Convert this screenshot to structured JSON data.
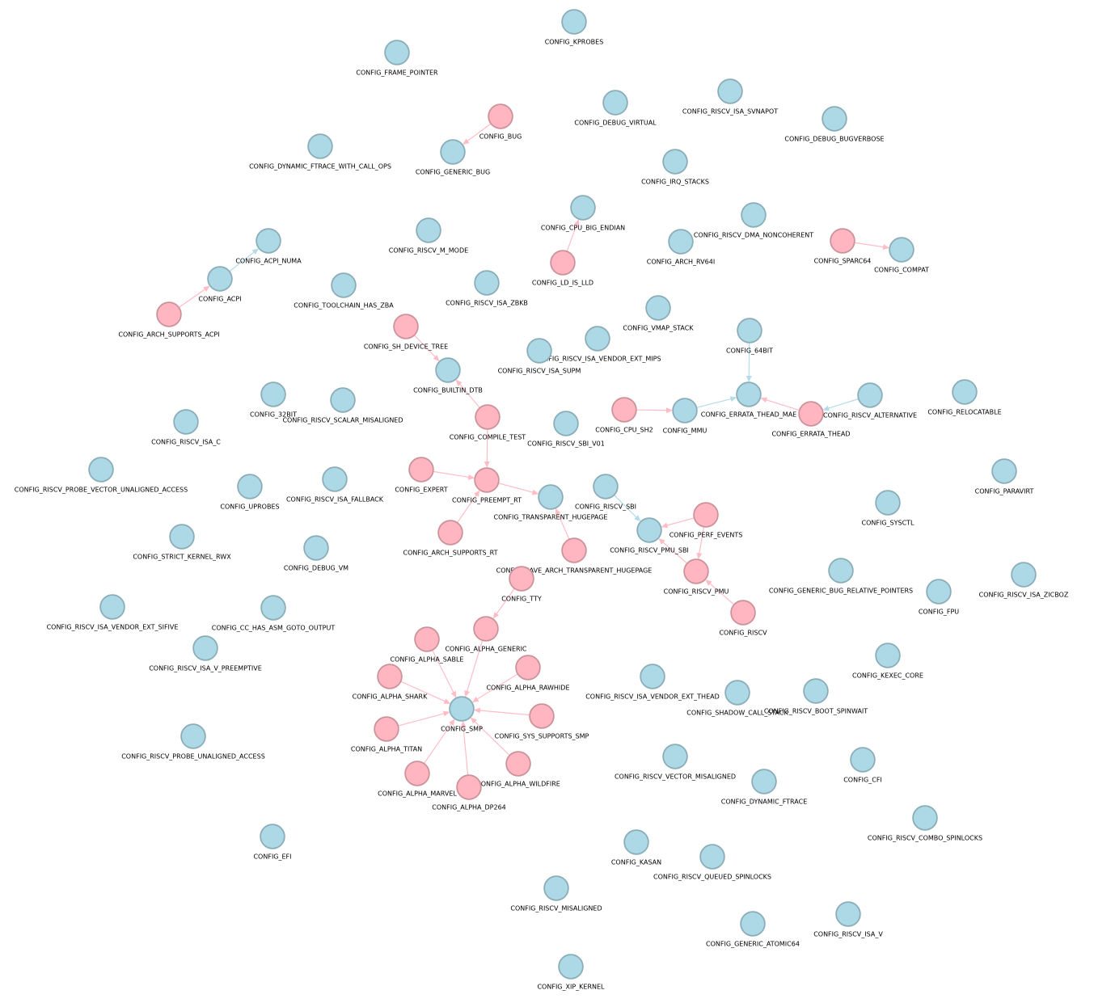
{
  "nodes": [
    {
      "label": "CONFIG_KPROBES",
      "color": "#add8e6"
    },
    {
      "label": "CONFIG_FRAME_POINTER",
      "color": "#add8e6"
    },
    {
      "label": "CONFIG_BUG",
      "color": "#ffb6c1"
    },
    {
      "label": "CONFIG_GENERIC_BUG",
      "color": "#add8e6"
    },
    {
      "label": "CONFIG_DEBUG_VIRTUAL",
      "color": "#add8e6"
    },
    {
      "label": "CONFIG_RISCV_ISA_SVNAPOT",
      "color": "#add8e6"
    },
    {
      "label": "CONFIG_DEBUG_BUGVERBOSE",
      "color": "#add8e6"
    },
    {
      "label": "CONFIG_DYNAMIC_FTRACE_WITH_CALL_OPS",
      "color": "#add8e6"
    },
    {
      "label": "CONFIG_IRQ_STACKS",
      "color": "#add8e6"
    },
    {
      "label": "CONFIG_CPU_BIG_ENDIAN",
      "color": "#add8e6"
    },
    {
      "label": "CONFIG_LD_IS_LLD",
      "color": "#ffb6c1"
    },
    {
      "label": "CONFIG_RISCV_DMA_NONCOHERENT",
      "color": "#add8e6"
    },
    {
      "label": "CONFIG_ARCH_RV64I",
      "color": "#add8e6"
    },
    {
      "label": "CONFIG_SPARC64",
      "color": "#ffb6c1"
    },
    {
      "label": "CONFIG_COMPAT",
      "color": "#add8e6"
    },
    {
      "label": "CONFIG_RISCV_M_MODE",
      "color": "#add8e6"
    },
    {
      "label": "CONFIG_ACPI_NUMA",
      "color": "#add8e6"
    },
    {
      "label": "CONFIG_ACPI",
      "color": "#add8e6"
    },
    {
      "label": "CONFIG_ARCH_SUPPORTS_ACPI",
      "color": "#ffb6c1"
    },
    {
      "label": "CONFIG_TOOLCHAIN_HAS_ZBA",
      "color": "#add8e6"
    },
    {
      "label": "CONFIG_RISCV_ISA_ZBKB",
      "color": "#add8e6"
    },
    {
      "label": "CONFIG_VMAP_STACK",
      "color": "#add8e6"
    },
    {
      "label": "CONFIG_64BIT",
      "color": "#add8e6"
    },
    {
      "label": "CONFIG_SH_DEVICE_TREE",
      "color": "#ffb6c1"
    },
    {
      "label": "CONFIG_RISCV_ISA_VENDOR_EXT_MIPS",
      "color": "#add8e6"
    },
    {
      "label": "CONFIG_RISCV_ISA_SUPM",
      "color": "#add8e6"
    },
    {
      "label": "CONFIG_BUILTIN_DTB",
      "color": "#add8e6"
    },
    {
      "label": "CONFIG_ERRATA_THEAD_MAE",
      "color": "#add8e6"
    },
    {
      "label": "CONFIG_RISCV_ALTERNATIVE",
      "color": "#add8e6"
    },
    {
      "label": "CONFIG_RELOCATABLE",
      "color": "#add8e6"
    },
    {
      "label": "CONFIG_CPU_SH2",
      "color": "#ffb6c1"
    },
    {
      "label": "CONFIG_MMU",
      "color": "#add8e6"
    },
    {
      "label": "CONFIG_ERRATA_THEAD",
      "color": "#ffb6c1"
    },
    {
      "label": "CONFIG_32BIT",
      "color": "#add8e6"
    },
    {
      "label": "CONFIG_RISCV_SCALAR_MISALIGNED",
      "color": "#add8e6"
    },
    {
      "label": "CONFIG_COMPILE_TEST",
      "color": "#ffb6c1"
    },
    {
      "label": "CONFIG_RISCV_SBI_V01",
      "color": "#add8e6"
    },
    {
      "label": "CONFIG_RISCV_ISA_C",
      "color": "#add8e6"
    },
    {
      "label": "CONFIG_RISCV_PROBE_VECTOR_UNALIGNED_ACCESS",
      "color": "#add8e6"
    },
    {
      "label": "CONFIG_EXPERT",
      "color": "#ffb6c1"
    },
    {
      "label": "CONFIG_PREEMPT_RT",
      "color": "#ffb6c1"
    },
    {
      "label": "CONFIG_RISCV_ISA_FALLBACK",
      "color": "#add8e6"
    },
    {
      "label": "CONFIG_UPROBES",
      "color": "#add8e6"
    },
    {
      "label": "CONFIG_TRANSPARENT_HUGEPAGE",
      "color": "#add8e6"
    },
    {
      "label": "CONFIG_RISCV_SBI",
      "color": "#add8e6"
    },
    {
      "label": "CONFIG_PARAVIRT",
      "color": "#add8e6"
    },
    {
      "label": "CONFIG_SYSCTL",
      "color": "#add8e6"
    },
    {
      "label": "CONFIG_PERF_EVENTS",
      "color": "#ffb6c1"
    },
    {
      "label": "CONFIG_RISCV_PMU_SBI",
      "color": "#add8e6"
    },
    {
      "label": "CONFIG_ARCH_SUPPORTS_RT",
      "color": "#ffb6c1"
    },
    {
      "label": "CONFIG_STRICT_KERNEL_RWX",
      "color": "#add8e6"
    },
    {
      "label": "CONFIG_DEBUG_VM",
      "color": "#add8e6"
    },
    {
      "label": "CONFIG_HAVE_ARCH_TRANSPARENT_HUGEPAGE",
      "color": "#ffb6c1"
    },
    {
      "label": "CONFIG_RISCV_PMU",
      "color": "#ffb6c1"
    },
    {
      "label": "CONFIG_GENERIC_BUG_RELATIVE_POINTERS",
      "color": "#add8e6"
    },
    {
      "label": "CONFIG_RISCV_ISA_ZICBOZ",
      "color": "#add8e6"
    },
    {
      "label": "CONFIG_FPU",
      "color": "#add8e6"
    },
    {
      "label": "CONFIG_TTY",
      "color": "#ffb6c1"
    },
    {
      "label": "CONFIG_RISCV_ISA_VENDOR_EXT_SIFIVE",
      "color": "#add8e6"
    },
    {
      "label": "CONFIG_CC_HAS_ASM_GOTO_OUTPUT",
      "color": "#add8e6"
    },
    {
      "label": "CONFIG_RISCV",
      "color": "#ffb6c1"
    },
    {
      "label": "CONFIG_ALPHA_GENERIC",
      "color": "#ffb6c1"
    },
    {
      "label": "CONFIG_RISCV_ISA_V_PREEMPTIVE",
      "color": "#add8e6"
    },
    {
      "label": "CONFIG_ALPHA_SABLE",
      "color": "#ffb6c1"
    },
    {
      "label": "CONFIG_KEXEC_CORE",
      "color": "#add8e6"
    },
    {
      "label": "CONFIG_ALPHA_RAWHIDE",
      "color": "#ffb6c1"
    },
    {
      "label": "CONFIG_ALPHA_SHARK",
      "color": "#ffb6c1"
    },
    {
      "label": "CONFIG_RISCV_ISA_VENDOR_EXT_THEAD",
      "color": "#add8e6"
    },
    {
      "label": "CONFIG_SHADOW_CALL_STACK",
      "color": "#add8e6"
    },
    {
      "label": "CONFIG_RISCV_BOOT_SPINWAIT",
      "color": "#add8e6"
    },
    {
      "label": "CONFIG_SMP",
      "color": "#add8e6"
    },
    {
      "label": "CONFIG_SYS_SUPPORTS_SMP",
      "color": "#ffb6c1"
    },
    {
      "label": "CONFIG_ALPHA_TITAN",
      "color": "#ffb6c1"
    },
    {
      "label": "CONFIG_RISCV_PROBE_UNALIGNED_ACCESS",
      "color": "#add8e6"
    },
    {
      "label": "CONFIG_RISCV_VECTOR_MISALIGNED",
      "color": "#add8e6"
    },
    {
      "label": "CONFIG_CFI",
      "color": "#add8e6"
    },
    {
      "label": "CONFIG_ALPHA_WILDFIRE",
      "color": "#ffb6c1"
    },
    {
      "label": "CONFIG_ALPHA_MARVEL",
      "color": "#ffb6c1"
    },
    {
      "label": "CONFIG_DYNAMIC_FTRACE",
      "color": "#add8e6"
    },
    {
      "label": "CONFIG_ALPHA_DP264",
      "color": "#ffb6c1"
    },
    {
      "label": "CONFIG_RISCV_COMBO_SPINLOCKS",
      "color": "#add8e6"
    },
    {
      "label": "CONFIG_EFI",
      "color": "#add8e6"
    },
    {
      "label": "CONFIG_KASAN",
      "color": "#add8e6"
    },
    {
      "label": "CONFIG_RISCV_QUEUED_SPINLOCKS",
      "color": "#add8e6"
    },
    {
      "label": "CONFIG_RISCV_MISALIGNED",
      "color": "#add8e6"
    },
    {
      "label": "CONFIG_GENERIC_ATOMIC64",
      "color": "#add8e6"
    },
    {
      "label": "CONFIG_RISCV_ISA_V",
      "color": "#add8e6"
    },
    {
      "label": "CONFIG_XIP_KERNEL",
      "color": "#add8e6"
    }
  ],
  "edges": [
    {
      "from": "CONFIG_BUG",
      "to": "CONFIG_GENERIC_BUG"
    },
    {
      "from": "CONFIG_LD_IS_LLD",
      "to": "CONFIG_CPU_BIG_ENDIAN"
    },
    {
      "from": "CONFIG_SPARC64",
      "to": "CONFIG_COMPAT"
    },
    {
      "from": "CONFIG_ARCH_SUPPORTS_ACPI",
      "to": "CONFIG_ACPI"
    },
    {
      "from": "CONFIG_ACPI",
      "to": "CONFIG_ACPI_NUMA"
    },
    {
      "from": "CONFIG_SH_DEVICE_TREE",
      "to": "CONFIG_BUILTIN_DTB"
    },
    {
      "from": "CONFIG_COMPILE_TEST",
      "to": "CONFIG_BUILTIN_DTB"
    },
    {
      "from": "CONFIG_COMPILE_TEST",
      "to": "CONFIG_PREEMPT_RT"
    },
    {
      "from": "CONFIG_EXPERT",
      "to": "CONFIG_PREEMPT_RT"
    },
    {
      "from": "CONFIG_ARCH_SUPPORTS_RT",
      "to": "CONFIG_PREEMPT_RT"
    },
    {
      "from": "CONFIG_PREEMPT_RT",
      "to": "CONFIG_TRANSPARENT_HUGEPAGE"
    },
    {
      "from": "CONFIG_HAVE_ARCH_TRANSPARENT_HUGEPAGE",
      "to": "CONFIG_TRANSPARENT_HUGEPAGE"
    },
    {
      "from": "CONFIG_64BIT",
      "to": "CONFIG_ERRATA_THEAD_MAE"
    },
    {
      "from": "CONFIG_MMU",
      "to": "CONFIG_ERRATA_THEAD_MAE"
    },
    {
      "from": "CONFIG_ERRATA_THEAD",
      "to": "CONFIG_ERRATA_THEAD_MAE"
    },
    {
      "from": "CONFIG_RISCV_ALTERNATIVE",
      "to": "CONFIG_ERRATA_THEAD"
    },
    {
      "from": "CONFIG_CPU_SH2",
      "to": "CONFIG_MMU"
    },
    {
      "from": "CONFIG_RISCV_SBI",
      "to": "CONFIG_RISCV_PMU_SBI"
    },
    {
      "from": "CONFIG_PERF_EVENTS",
      "to": "CONFIG_RISCV_PMU_SBI"
    },
    {
      "from": "CONFIG_PERF_EVENTS",
      "to": "CONFIG_RISCV_PMU"
    },
    {
      "from": "CONFIG_RISCV_PMU",
      "to": "CONFIG_RISCV_PMU_SBI"
    },
    {
      "from": "CONFIG_RISCV",
      "to": "CONFIG_RISCV_PMU"
    },
    {
      "from": "CONFIG_TTY",
      "to": "CONFIG_ALPHA_GENERIC"
    },
    {
      "from": "CONFIG_ALPHA_GENERIC",
      "to": "CONFIG_SMP"
    },
    {
      "from": "CONFIG_ALPHA_SABLE",
      "to": "CONFIG_SMP"
    },
    {
      "from": "CONFIG_ALPHA_RAWHIDE",
      "to": "CONFIG_SMP"
    },
    {
      "from": "CONFIG_ALPHA_SHARK",
      "to": "CONFIG_SMP"
    },
    {
      "from": "CONFIG_SYS_SUPPORTS_SMP",
      "to": "CONFIG_SMP"
    },
    {
      "from": "CONFIG_ALPHA_TITAN",
      "to": "CONFIG_SMP"
    },
    {
      "from": "CONFIG_ALPHA_WILDFIRE",
      "to": "CONFIG_SMP"
    },
    {
      "from": "CONFIG_ALPHA_MARVEL",
      "to": "CONFIG_SMP"
    },
    {
      "from": "CONFIG_ALPHA_DP264",
      "to": "CONFIG_SMP"
    }
  ]
}
